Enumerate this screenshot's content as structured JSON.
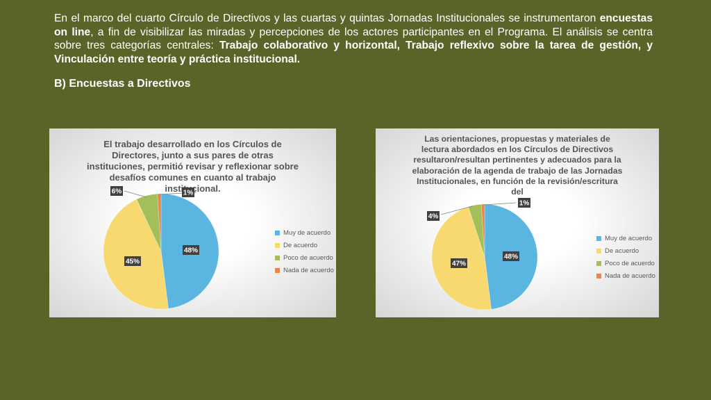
{
  "intro": {
    "t1": "En el marco del cuarto Círculo de Directivos y las cuartas y quintas Jornadas Institucionales se instrumentaron ",
    "b1": "encuestas on line",
    "t2": ", a fin de visibilizar las miradas y percepciones de los actores participantes en el Programa.  El análisis se centra sobre tres categorías centrales: ",
    "b2": "Trabajo colaborativo y horizontal, Trabajo reflexivo sobre la tarea de gestión, y Vinculación entre teoría y práctica institucional."
  },
  "section_title": "B) Encuestas a Directivos",
  "chart_data": [
    {
      "type": "pie",
      "title": "El trabajo desarrollado en los Círculos de Directores, junto a sus pares de otras instituciones, permitió revisar y reflexionar sobre desafíos comunes en cuanto al trabajo institucional.",
      "categories": [
        "Muy de acuerdo",
        "De acuerdo",
        "Poco de acuerdo",
        "Nada de acuerdo"
      ],
      "values": [
        48,
        45,
        6,
        1
      ],
      "data_labels": [
        "48%",
        "45%",
        "6%",
        "1%"
      ],
      "colors": [
        "#5bb5e1",
        "#f7d96f",
        "#a3bf5c",
        "#e9874a"
      ],
      "legend": "right"
    },
    {
      "type": "pie",
      "title": "Las orientaciones, propuestas y materiales de lectura abordados en los Círculos de Directivos resultaron/resultan pertinentes y adecuados para la elaboración de la agenda de trabajo de las Jornadas Institucionales, en función de la revisión/escritura del",
      "categories": [
        "Muy de acuerdo",
        "De acuerdo",
        "Poco de acuerdo",
        "Nada de acuerdo"
      ],
      "values": [
        48,
        47,
        4,
        1
      ],
      "data_labels": [
        "48%",
        "47%",
        "4%",
        "1%"
      ],
      "colors": [
        "#5bb5e1",
        "#f7d96f",
        "#a3bf5c",
        "#e9874a"
      ],
      "legend": "right"
    }
  ]
}
